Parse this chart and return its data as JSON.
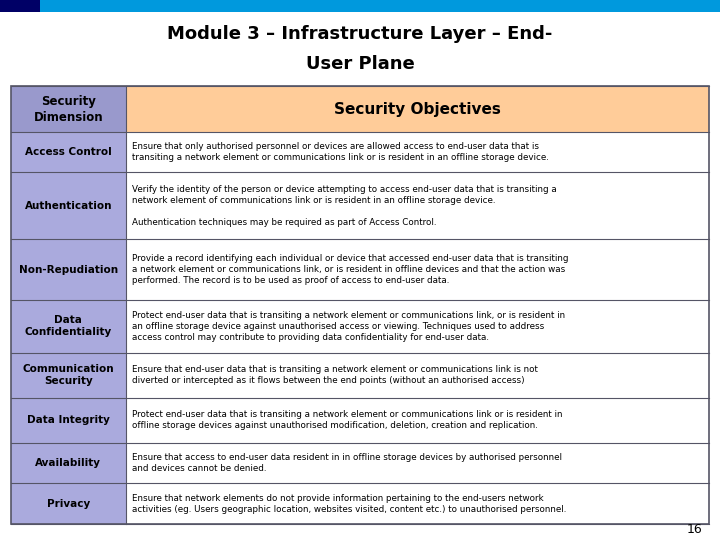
{
  "title_line1": "Module 3 – Infrastructure Layer – End-",
  "title_line2": "User Plane",
  "top_bar_color": "#0099dd",
  "top_bar_dark_color": "#000066",
  "header_left_color": "#9999cc",
  "header_right_color": "#ffcc99",
  "row_left_color": "#aaaadd",
  "row_right_color": "#ffffff",
  "border_color": "#555566",
  "page_number": "16",
  "header": [
    "Security\nDimension",
    "Security Objectives"
  ],
  "rows": [
    {
      "dimension": "Access Control",
      "objective": "Ensure that only authorised personnel or devices are allowed access to end-user data that is\ntransiting a network element or communications link or is resident in an offline storage device."
    },
    {
      "dimension": "Authentication",
      "objective": "Verify the identity of the person or device attempting to access end-user data that is transiting a\nnetwork element of communications link or is resident in an offline storage device.\n\nAuthentication techniques may be required as part of Access Control."
    },
    {
      "dimension": "Non-Repudiation",
      "objective": "Provide a record identifying each individual or device that accessed end-user data that is transiting\na network element or communications link, or is resident in offline devices and that the action was\nperformed. The record is to be used as proof of access to end-user data."
    },
    {
      "dimension": "Data\nConfidentiality",
      "objective": "Protect end-user data that is transiting a network element or communications link, or is resident in\nan offline storage device against unauthorised access or viewing. Techniques used to address\naccess control may contribute to providing data confidentiality for end-user data."
    },
    {
      "dimension": "Communication\nSecurity",
      "objective": "Ensure that end-user data that is transiting a network element or communications link is not\ndiverted or intercepted as it flows between the end points (without an authorised access)"
    },
    {
      "dimension": "Data Integrity",
      "objective": "Protect end-user data that is transiting a network element or communications link or is resident in\noffline storage devices against unauthorised modification, deletion, creation and replication."
    },
    {
      "dimension": "Availability",
      "objective": "Ensure that access to end-user data resident in in offline storage devices by authorised personnel\nand devices cannot be denied."
    },
    {
      "dimension": "Privacy",
      "objective": "Ensure that network elements do not provide information pertaining to the end-users network\nactivities (eg. Users geographic location, websites visited, content etc.) to unauthorised personnel."
    }
  ]
}
